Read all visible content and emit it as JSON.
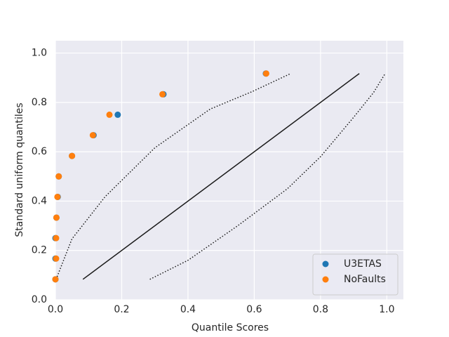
{
  "chart_data": {
    "type": "scatter",
    "xlabel": "Quantile Scores",
    "ylabel": "Standard uniform quantiles",
    "xlim": [
      0,
      1.05
    ],
    "ylim": [
      0,
      1.05
    ],
    "xticks": [
      {
        "value": 0,
        "label": "0.0"
      },
      0.2,
      0.4,
      0.6,
      0.8,
      {
        "value": 1,
        "label": "1.0"
      }
    ],
    "yticks": [
      {
        "value": 0,
        "label": "0.0"
      },
      0.2,
      0.4,
      0.6,
      0.8,
      {
        "value": 1,
        "label": "1.0"
      }
    ],
    "grid": true,
    "legend": "lower right",
    "series": [
      {
        "name": "U3ETAS",
        "color": "#1f77b4",
        "x": [
          0.0,
          0.0,
          0.0,
          0.003,
          0.007,
          0.01,
          0.05,
          0.115,
          0.188,
          0.326,
          0.635
        ],
        "values": [
          0.083,
          0.167,
          0.25,
          0.333,
          0.417,
          0.5,
          0.583,
          0.667,
          0.75,
          0.833,
          0.917
        ]
      },
      {
        "name": "NoFaults",
        "color": "#ff7f0e",
        "x": [
          0.0,
          0.002,
          0.002,
          0.003,
          0.006,
          0.01,
          0.05,
          0.113,
          0.163,
          0.323,
          0.636
        ],
        "values": [
          0.083,
          0.167,
          0.25,
          0.333,
          0.417,
          0.5,
          0.583,
          0.667,
          0.75,
          0.833,
          0.917
        ]
      }
    ],
    "lines": [
      {
        "color": "#1a1a1a",
        "style": "solid",
        "x": [
          0.083,
          0.917
        ],
        "y": [
          0.083,
          0.917
        ]
      },
      {
        "color": "#1a1a1a",
        "style": "dotted",
        "x": [
          0.002,
          0.05,
          0.15,
          0.3,
          0.467,
          0.594,
          0.71
        ],
        "y": [
          0.083,
          0.247,
          0.418,
          0.616,
          0.773,
          0.844,
          0.917
        ]
      },
      {
        "color": "#1a1a1a",
        "style": "dotted",
        "x": [
          0.285,
          0.4,
          0.55,
          0.7,
          0.8,
          0.9,
          0.96,
          0.995
        ],
        "y": [
          0.083,
          0.16,
          0.3,
          0.45,
          0.58,
          0.74,
          0.84,
          0.917
        ]
      }
    ]
  }
}
